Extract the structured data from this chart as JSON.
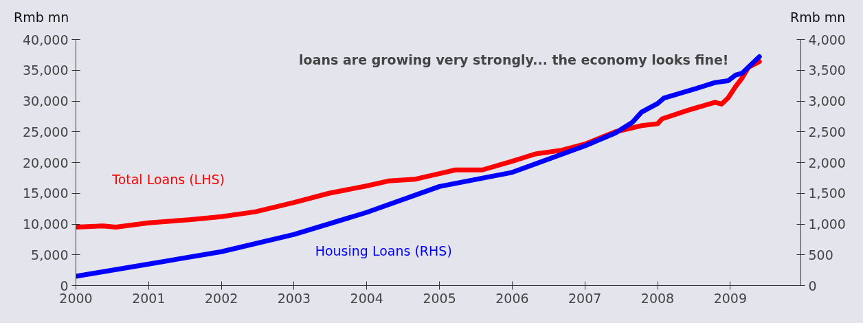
{
  "chart_data": {
    "type": "line",
    "ylabel": "Rmb mn",
    "y2label": "Rmb mn",
    "annotations": [
      "loans are growing very strongly... the economy looks fine!"
    ],
    "xlim": [
      2000,
      2009.97
    ],
    "xticks": [
      2000,
      2001,
      2002,
      2003,
      2004,
      2005,
      2006,
      2007,
      2008,
      2009
    ],
    "ylim": [
      0,
      40000
    ],
    "yticks": [
      {
        "value": 0,
        "label": "0"
      },
      {
        "value": 5000,
        "label": "5,000"
      },
      {
        "value": 10000,
        "label": "10,000"
      },
      {
        "value": 15000,
        "label": "15,000"
      },
      {
        "value": 20000,
        "label": "20,000"
      },
      {
        "value": 25000,
        "label": "25,000"
      },
      {
        "value": 30000,
        "label": "30,000"
      },
      {
        "value": 35000,
        "label": "35,000"
      },
      {
        "value": 40000,
        "label": "40,000"
      }
    ],
    "y2lim": [
      0,
      4000
    ],
    "y2ticks": [
      0,
      500,
      {
        "value": 1000,
        "label": "1,000"
      },
      {
        "value": 1500,
        "label": "1,500"
      },
      {
        "value": 2000,
        "label": "2,000"
      },
      {
        "value": 2500,
        "label": "2,500"
      },
      {
        "value": 3000,
        "label": "3,000"
      },
      {
        "value": 3500,
        "label": "3,500"
      },
      {
        "value": 4000,
        "label": "4,000"
      }
    ],
    "grid": false,
    "marker": "none",
    "line_style": "solid",
    "series": [
      {
        "name": "Total Loans (LHS)",
        "color": "#ff0000",
        "x": [
          2000.0,
          2000.37,
          2000.55,
          2001.0,
          2001.56,
          2002.0,
          2002.47,
          2003.0,
          2003.48,
          2004.0,
          2004.3,
          2004.67,
          2005.0,
          2005.22,
          2005.59,
          2006.0,
          2006.32,
          2006.68,
          2007.0,
          2007.42,
          2007.78,
          2008.0,
          2008.06,
          2008.42,
          2008.79,
          2008.88,
          2008.97,
          2009.07,
          2009.16,
          2009.25,
          2009.4
        ],
        "values": [
          9500,
          9700,
          9500,
          10200,
          10700,
          11200,
          12000,
          13500,
          15000,
          16200,
          17000,
          17300,
          18200,
          18800,
          18800,
          20200,
          21400,
          22000,
          23000,
          25000,
          26000,
          26300,
          27100,
          28500,
          29800,
          29500,
          30500,
          32300,
          33700,
          35500,
          36400
        ]
      },
      {
        "name": "Housing Loans (RHS)",
        "color": "#0000ff",
        "axis": "y2",
        "x": [
          2000.0,
          2001.0,
          2002.0,
          2003.0,
          2004.0,
          2005.0,
          2006.0,
          2007.0,
          2007.42,
          2007.65,
          2007.78,
          2008.0,
          2008.09,
          2008.52,
          2008.79,
          2008.97,
          2009.07,
          2009.16,
          2009.4
        ],
        "values": [
          150,
          350,
          550,
          830,
          1190,
          1610,
          1840,
          2270,
          2480,
          2650,
          2820,
          2960,
          3050,
          3200,
          3300,
          3330,
          3420,
          3450,
          3720
        ]
      }
    ]
  }
}
